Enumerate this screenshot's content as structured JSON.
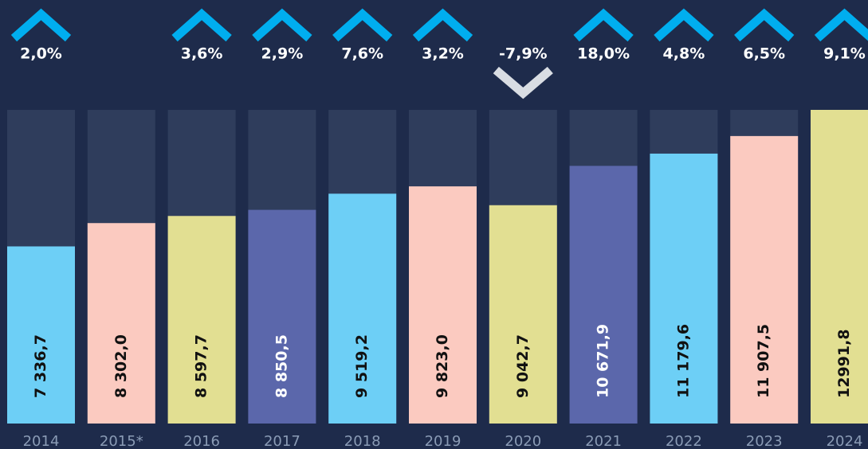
{
  "chart_data": {
    "type": "bar",
    "categories": [
      "2014",
      "2015*",
      "2016",
      "2017",
      "2018",
      "2019",
      "2020",
      "2021",
      "2022",
      "2023",
      "2024"
    ],
    "values": [
      7336.7,
      8302.0,
      8597.7,
      8850.5,
      9519.2,
      9823.0,
      9042.7,
      10671.9,
      11179.6,
      11907.5,
      12991.8
    ],
    "value_labels": [
      "7 336,7",
      "8 302,0",
      "8 597,7",
      "8 850,5",
      "9 519,2",
      "9 823,0",
      "9 042,7",
      "10 671,9",
      "11 179,6",
      "11 907,5",
      "12991,8"
    ],
    "colors": [
      "#6dcff6",
      "#fbcac0",
      "#e2df92",
      "#5b67ab",
      "#6dcff6",
      "#fbcac0",
      "#e2df92",
      "#5b67ab",
      "#6dcff6",
      "#fbcac0",
      "#e2df92"
    ],
    "changes": [
      2.0,
      null,
      3.6,
      2.9,
      7.6,
      3.2,
      -7.9,
      18.0,
      4.8,
      6.5,
      9.1
    ],
    "change_labels": [
      "2,0%",
      null,
      "3,6%",
      "2,9%",
      "7,6%",
      "3,2%",
      "-7,9%",
      "18,0%",
      "4,8%",
      "6,5%",
      "9,1%"
    ]
  }
}
